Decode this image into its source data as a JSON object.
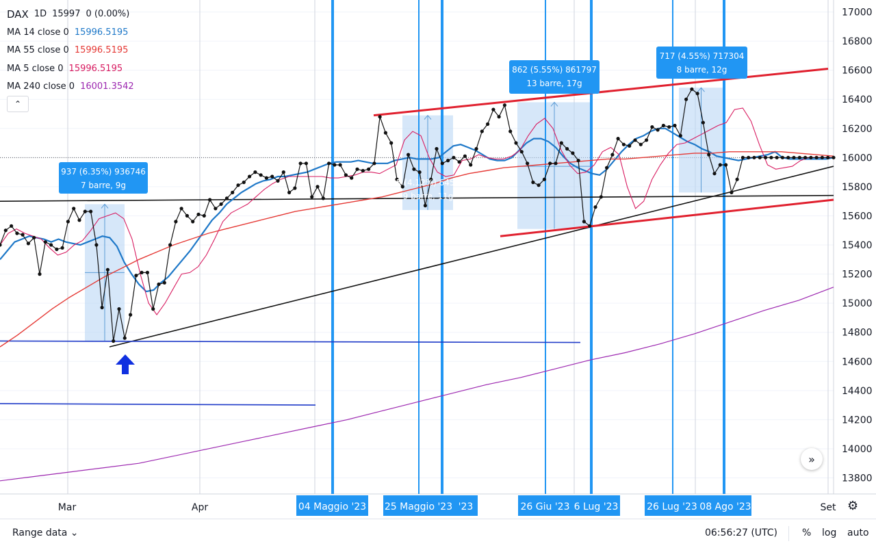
{
  "legend": {
    "symbol": "DAX",
    "interval": "1D",
    "price": "15997",
    "change": "0 (0.00%)",
    "indicators": [
      {
        "label": "MA 14 close 0",
        "value": "15996.5195",
        "color": "#1e78c8"
      },
      {
        "label": "MA 55 close 0",
        "value": "15996.5195",
        "color": "#e53935"
      },
      {
        "label": "MA 5 close 0",
        "value": "15996.5195",
        "color": "#d81b60"
      },
      {
        "label": "MA 240 close 0",
        "value": "16001.3542",
        "color": "#9c27b0"
      }
    ]
  },
  "chart_data": {
    "type": "line",
    "price_axis": {
      "ticks": [
        "17000",
        "16800",
        "16600",
        "16400",
        "16200",
        "16000",
        "15800",
        "15600",
        "15400",
        "15200",
        "15000",
        "14800",
        "14600",
        "14400",
        "14200",
        "14000",
        "13800"
      ],
      "ylim": [
        13800,
        17000
      ]
    },
    "time_axis": {
      "labels": [
        "Mar",
        "Apr",
        "Set"
      ],
      "highlighted_labels": [
        "04 Maggio '23",
        "25 Maggio '23",
        "'23",
        "26 Giu '23",
        "6 Lug '23",
        "26 Lug '23",
        "08 Ago '23"
      ]
    },
    "price_series": [
      15400,
      15500,
      15530,
      15480,
      15470,
      15410,
      15450,
      15200,
      15420,
      15400,
      15370,
      15380,
      15560,
      15650,
      15570,
      15630,
      15630,
      15400,
      14970,
      15230,
      14740,
      14960,
      14760,
      14920,
      15190,
      15210,
      15210,
      14960,
      15130,
      15140,
      15400,
      15560,
      15650,
      15600,
      15560,
      15610,
      15600,
      15710,
      15650,
      15680,
      15720,
      15760,
      15810,
      15830,
      15870,
      15900,
      15880,
      15860,
      15870,
      15840,
      15900,
      15760,
      15790,
      15960,
      15960,
      15730,
      15800,
      15720,
      15960,
      15950,
      15950,
      15880,
      15860,
      15920,
      15910,
      15920,
      15960,
      16280,
      16170,
      16100,
      15850,
      15800,
      16020,
      15920,
      15900,
      15670,
      15850,
      16060,
      15960,
      15980,
      16000,
      15970,
      16010,
      15950,
      16060,
      16180,
      16230,
      16330,
      16280,
      16360,
      16180,
      16100,
      16040,
      15960,
      15830,
      15810,
      15850,
      15960,
      15960,
      16100,
      16060,
      16030,
      15980,
      15560,
      15530,
      15660,
      15730,
      15930,
      16020,
      16130,
      16090,
      16080,
      16120,
      16090,
      16120,
      16210,
      16190,
      16220,
      16210,
      16220,
      16150,
      16400,
      16470,
      16440,
      16240,
      16020,
      15890,
      15950,
      15950,
      15760,
      15850,
      16000,
      16000,
      16000,
      16000,
      16000,
      16000,
      16000,
      16000,
      16000,
      16000,
      16000,
      16000,
      16000,
      16000,
      16000,
      16000,
      16000
    ],
    "ma_series": [
      {
        "name": "MA 14 close 0",
        "values": [
          15300,
          15360,
          15420,
          15440,
          15460,
          15450,
          15440,
          15420,
          15440,
          15420,
          15410,
          15400,
          15420,
          15440,
          15460,
          15450,
          15390,
          15280,
          15200,
          15130,
          15080,
          15090,
          15140,
          15180,
          15240,
          15300,
          15360,
          15430,
          15500,
          15570,
          15620,
          15680,
          15720,
          15760,
          15790,
          15820,
          15840,
          15850,
          15870,
          15870,
          15880,
          15890,
          15900,
          15920,
          15940,
          15960,
          15970,
          15970,
          15970,
          15980,
          15970,
          15960,
          15960,
          15960,
          15980,
          15990,
          16000,
          15990,
          15990,
          15990,
          16000,
          16040,
          16080,
          16090,
          16070,
          16050,
          16020,
          15990,
          15980,
          15980,
          16000,
          16050,
          16100,
          16130,
          16130,
          16110,
          16070,
          16010,
          15960,
          15930,
          15910,
          15890,
          15880,
          15920,
          15980,
          16040,
          16090,
          16130,
          16150,
          16180,
          16200,
          16200,
          16170,
          16140,
          16110,
          16090,
          16060,
          16040,
          16010,
          16000,
          15990,
          15980,
          15990,
          16000,
          16010,
          16020,
          16040,
          16000,
          15990,
          15990,
          15990,
          15990,
          15990,
          15990,
          16000
        ]
      },
      {
        "name": "MA 55 close 0",
        "values": [
          14700,
          14780,
          14870,
          14960,
          15040,
          15110,
          15180,
          15240,
          15300,
          15350,
          15400,
          15440,
          15480,
          15510,
          15540,
          15570,
          15600,
          15630,
          15650,
          15670,
          15690,
          15710,
          15730,
          15760,
          15790,
          15820,
          15860,
          15890,
          15910,
          15930,
          15940,
          15950,
          15960,
          15970,
          15980,
          15990,
          15990,
          16000,
          16010,
          16020,
          16030,
          16030,
          16040,
          16040,
          16040,
          16040,
          16030,
          16020,
          16010
        ]
      },
      {
        "name": "MA 5 close 0",
        "values": [
          15400,
          15480,
          15510,
          15480,
          15460,
          15440,
          15380,
          15330,
          15350,
          15400,
          15430,
          15500,
          15580,
          15600,
          15620,
          15580,
          15440,
          15200,
          15000,
          14920,
          15000,
          15100,
          15200,
          15210,
          15250,
          15330,
          15440,
          15560,
          15620,
          15650,
          15680,
          15730,
          15780,
          15820,
          15850,
          15870,
          15870,
          15870,
          15870,
          15870,
          15860,
          15860,
          15870,
          15880,
          15900,
          15900,
          15890,
          15920,
          15950,
          16120,
          16180,
          16150,
          16000,
          15900,
          15870,
          15880,
          15980,
          15990,
          16020,
          16000,
          15990,
          15990,
          16010,
          16050,
          16150,
          16230,
          16270,
          16200,
          16050,
          15950,
          15890,
          15900,
          15950,
          16040,
          16070,
          16020,
          15800,
          15650,
          15700,
          15850,
          15950,
          16030,
          16090,
          16100,
          16130,
          16160,
          16190,
          16220,
          16240,
          16330,
          16340,
          16250,
          16090,
          15950,
          15920,
          15930,
          15940,
          15980,
          16000,
          16000,
          16000,
          16000
        ]
      },
      {
        "name": "MA 240 close 0",
        "values": [
          13780,
          13810,
          13840,
          13870,
          13900,
          13950,
          14000,
          14050,
          14100,
          14150,
          14200,
          14260,
          14320,
          14380,
          14440,
          14490,
          14550,
          14610,
          14660,
          14720,
          14790,
          14870,
          14950,
          15020,
          15110
        ]
      }
    ],
    "measurements": [
      {
        "line1": "937 (6.35%) 936746",
        "line2": "7 barre, 9g"
      },
      {
        "line1": "645 (4.12%) 645058",
        "line2": "9 barre, 11g"
      },
      {
        "line1": "862 (5.55%) 861797",
        "line2": "13 barre, 17g"
      },
      {
        "line1": "717 (4.55%) 717304",
        "line2": "8 barre, 12g"
      }
    ]
  },
  "bottombar": {
    "range": "Range data",
    "time": "06:56:27 (UTC)",
    "pct": "%",
    "log": "log",
    "auto": "auto"
  },
  "icons": {
    "collapse": "chevron-up-icon",
    "scroll": "double-chevron-right-icon",
    "settings": "gear-icon"
  }
}
